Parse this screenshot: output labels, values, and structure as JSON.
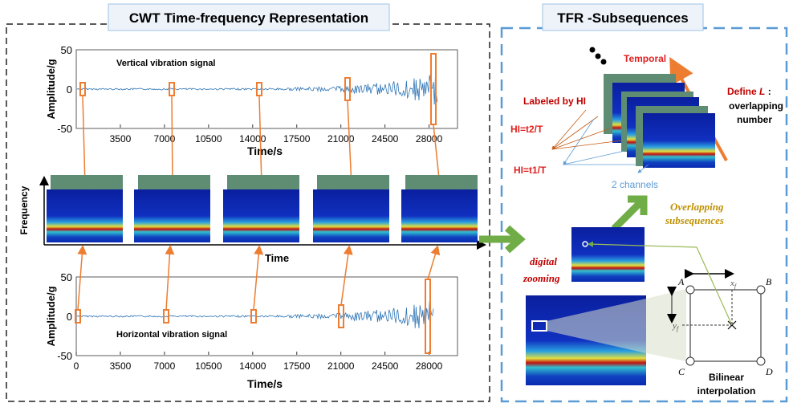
{
  "left_panel": {
    "title": "CWT Time-frequency Representation",
    "top_plot": {
      "signal_label": "Vertical vibration signal",
      "ylabel": "Amplitude/g",
      "xlabel": "Time/s",
      "yticks": [
        "50",
        "0",
        "-50"
      ],
      "xticks": [
        "3500",
        "7000",
        "10500",
        "14000",
        "17500",
        "21000",
        "24500",
        "28000"
      ]
    },
    "tfr_row": {
      "ylabel": "Frequency",
      "xlabel": "Time"
    },
    "bottom_plot": {
      "signal_label": "Horizontal vibration signal",
      "ylabel": "Amplitude/g",
      "xlabel": "Time/s",
      "yticks": [
        "50",
        "0",
        "-50"
      ],
      "xticks": [
        "0",
        "3500",
        "7000",
        "10500",
        "14000",
        "17500",
        "21000",
        "24500",
        "28000"
      ]
    }
  },
  "right_panel": {
    "title": "TFR -Subsequences",
    "temporal": "Temporal",
    "define_l_prefix": "Define ",
    "define_l_var": "L",
    "define_l_suffix": " :",
    "overlapping_number_1": "overlapping",
    "overlapping_number_2": "number",
    "labeled_by_hi": "Labeled by HI",
    "hi_t2": "HI=t2/T",
    "hi_t1": "HI=t1/T",
    "channels": "2 channels",
    "overlapping_subsequences_1": "Overlapping",
    "overlapping_subsequences_2": "subsequences",
    "digital_zooming_1": "digital",
    "digital_zooming_2": "zooming",
    "corner_a": "A",
    "corner_b": "B",
    "corner_c": "C",
    "corner_d": "D",
    "xf": "x",
    "yf": "y",
    "sub_f": "f",
    "bilinear_1": "Bilinear",
    "bilinear_2": "interpolation"
  },
  "colors": {
    "orange": "#ed7d31",
    "green": "#70ad47",
    "blue_border": "#5b9bd5",
    "signal": "#2e75b6",
    "red_text": "#c00000"
  }
}
